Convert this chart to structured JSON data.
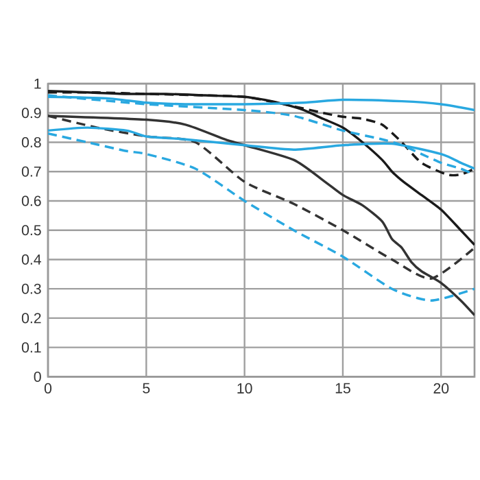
{
  "chart_data": {
    "type": "line",
    "xlim": [
      0,
      21.7
    ],
    "ylim": [
      0,
      1
    ],
    "xticks": [
      0,
      5,
      10,
      15,
      20
    ],
    "yticks": [
      0,
      {
        "value": 0.1,
        "label": "0.1"
      },
      {
        "value": 0.2,
        "label": "0.2"
      },
      {
        "value": 0.3,
        "label": "0.3"
      },
      {
        "value": 0.4,
        "label": "0.4"
      },
      {
        "value": 0.5,
        "label": "0.5"
      },
      {
        "value": 0.6,
        "label": "0.6"
      },
      {
        "value": 0.7,
        "label": "0.7"
      },
      {
        "value": 0.8,
        "label": "0.8"
      },
      {
        "value": 0.9,
        "label": "0.9"
      },
      1
    ],
    "grid": true,
    "marker": "none",
    "series": [
      {
        "color": "#1a1a1a",
        "line_style": "solid",
        "x": [
          0,
          2,
          4,
          6,
          8,
          10,
          11,
          12,
          13,
          14,
          15,
          16,
          17,
          17.5,
          18,
          19,
          20,
          21,
          21.7
        ],
        "values": [
          0.975,
          0.97,
          0.965,
          0.965,
          0.96,
          0.955,
          0.945,
          0.93,
          0.91,
          0.88,
          0.85,
          0.8,
          0.74,
          0.7,
          0.67,
          0.62,
          0.57,
          0.5,
          0.45
        ]
      },
      {
        "color": "#1a1a1a",
        "line_style": "dashed",
        "x": [
          0,
          2.5,
          5,
          8,
          10,
          12,
          14,
          15,
          16,
          17,
          18,
          19,
          20.3,
          21,
          21.7
        ],
        "values": [
          0.97,
          0.97,
          0.965,
          0.96,
          0.955,
          0.93,
          0.9,
          0.887,
          0.88,
          0.86,
          0.8,
          0.73,
          0.69,
          0.69,
          0.71
        ]
      },
      {
        "color": "#29a8e0",
        "line_style": "solid",
        "x": [
          0,
          3,
          5,
          7,
          10,
          13,
          15,
          18,
          20,
          21.7
        ],
        "values": [
          0.955,
          0.95,
          0.935,
          0.93,
          0.93,
          0.935,
          0.945,
          0.94,
          0.93,
          0.91
        ]
      },
      {
        "color": "#29a8e0",
        "line_style": "dashed",
        "x": [
          0,
          5,
          10,
          12.5,
          15,
          17,
          18,
          19,
          20,
          21,
          21.7
        ],
        "values": [
          0.96,
          0.93,
          0.91,
          0.89,
          0.84,
          0.81,
          0.79,
          0.76,
          0.73,
          0.71,
          0.69
        ]
      },
      {
        "color": "#333333",
        "line_style": "solid",
        "x": [
          0,
          5,
          7,
          9,
          10,
          12.5,
          14,
          15,
          16,
          17,
          17.5,
          18,
          18.5,
          19,
          20,
          21,
          21.7
        ],
        "values": [
          0.89,
          0.877,
          0.86,
          0.81,
          0.79,
          0.74,
          0.67,
          0.62,
          0.585,
          0.53,
          0.47,
          0.44,
          0.39,
          0.36,
          0.32,
          0.26,
          0.21
        ]
      },
      {
        "color": "#333333",
        "line_style": "dashed",
        "x": [
          0,
          2.5,
          5,
          7.5,
          10,
          12.5,
          15,
          17.5,
          19.5,
          21.7
        ],
        "values": [
          0.89,
          0.85,
          0.82,
          0.8,
          0.665,
          0.59,
          0.5,
          0.4,
          0.335,
          0.44
        ]
      },
      {
        "color": "#29a8e0",
        "line_style": "solid",
        "x": [
          0,
          2,
          4,
          5,
          7,
          10,
          12.5,
          15,
          17.5,
          20,
          21,
          21.7
        ],
        "values": [
          0.84,
          0.85,
          0.84,
          0.82,
          0.81,
          0.79,
          0.775,
          0.79,
          0.795,
          0.76,
          0.73,
          0.71
        ]
      },
      {
        "color": "#29a8e0",
        "line_style": "dashed",
        "x": [
          0,
          2,
          4,
          5,
          7.5,
          10,
          12.5,
          15,
          17.5,
          19.5,
          21.7
        ],
        "values": [
          0.83,
          0.8,
          0.77,
          0.76,
          0.71,
          0.6,
          0.5,
          0.41,
          0.3,
          0.26,
          0.3
        ]
      }
    ]
  }
}
